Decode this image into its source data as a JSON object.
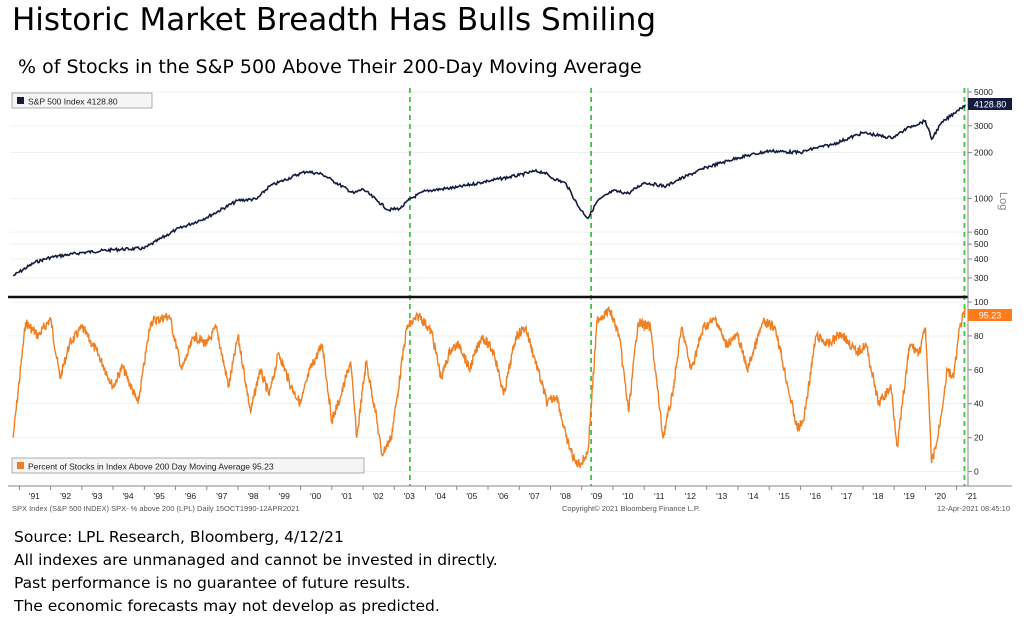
{
  "title": "Historic Market Breadth Has Bulls Smiling",
  "subtitle": "% of Stocks in the S&P 500 Above Their 200-Day Moving Average",
  "footnotes": [
    "Source: LPL Research, Bloomberg, 4/12/21",
    "All indexes are unmanaged and cannot be invested in directly.",
    "Past performance is no guarantee of future results.",
    "The economic forecasts may not develop as predicted."
  ],
  "chart_data": [
    {
      "type": "line",
      "legend": "S&P 500 Index 4128.80",
      "last_value_label": "4128.80",
      "scale": "log",
      "ylim": [
        250,
        5000
      ],
      "y_ticks": [
        300,
        400,
        500,
        600,
        1000,
        2000,
        3000,
        5000
      ],
      "y_axis_note": "Log",
      "x_years": [
        1990.8,
        1991.5,
        1992.0,
        1993.0,
        1994.0,
        1995.0,
        1996.0,
        1997.0,
        1998.0,
        1998.6,
        1999.0,
        2000.0,
        2000.2,
        2000.7,
        2001.0,
        2001.7,
        2002.0,
        2002.5,
        2002.8,
        2003.2,
        2003.5,
        2004.0,
        2005.0,
        2006.0,
        2007.0,
        2007.5,
        2007.8,
        2008.0,
        2008.5,
        2008.9,
        2009.2,
        2009.5,
        2010.0,
        2010.5,
        2011.0,
        2011.7,
        2012.0,
        2013.0,
        2014.0,
        2015.0,
        2016.0,
        2016.5,
        2017.0,
        2018.0,
        2018.9,
        2019.0,
        2019.5,
        2020.0,
        2020.2,
        2020.5,
        2021.0,
        2021.28
      ],
      "values": [
        310,
        380,
        410,
        440,
        460,
        470,
        620,
        750,
        970,
        990,
        1200,
        1460,
        1500,
        1440,
        1320,
        1080,
        1150,
        950,
        840,
        860,
        990,
        1120,
        1180,
        1300,
        1420,
        1510,
        1480,
        1380,
        1250,
        880,
        740,
        960,
        1120,
        1080,
        1270,
        1200,
        1300,
        1600,
        1850,
        2050,
        2000,
        2150,
        2250,
        2700,
        2500,
        2550,
        2950,
        3230,
        2450,
        3100,
        3750,
        4128.8
      ]
    },
    {
      "type": "line",
      "legend": "Percent of Stocks in Index Above 200 Day Moving Average 95.23",
      "last_value_label": "95.23",
      "ylim": [
        -5,
        100
      ],
      "y_ticks": [
        0,
        20,
        40,
        60,
        80,
        100
      ],
      "x_years": [
        1990.8,
        1991.2,
        1991.6,
        1992.0,
        1992.3,
        1992.6,
        1993.0,
        1993.5,
        1994.0,
        1994.3,
        1994.8,
        1995.2,
        1995.8,
        1996.2,
        1996.6,
        1997.0,
        1997.3,
        1997.7,
        1998.0,
        1998.4,
        1998.7,
        1999.0,
        1999.3,
        1999.7,
        2000.0,
        2000.3,
        2000.7,
        2001.0,
        2001.3,
        2001.6,
        2001.8,
        2002.1,
        2002.4,
        2002.6,
        2002.9,
        2003.1,
        2003.4,
        2003.8,
        2004.2,
        2004.5,
        2004.8,
        2005.1,
        2005.4,
        2005.8,
        2006.2,
        2006.5,
        2006.9,
        2007.2,
        2007.6,
        2007.9,
        2008.2,
        2008.5,
        2008.8,
        2009.0,
        2009.2,
        2009.5,
        2009.9,
        2010.2,
        2010.5,
        2010.8,
        2011.2,
        2011.6,
        2011.9,
        2012.2,
        2012.5,
        2012.9,
        2013.3,
        2013.6,
        2014.0,
        2014.3,
        2014.8,
        2015.2,
        2015.6,
        2015.9,
        2016.1,
        2016.5,
        2016.9,
        2017.3,
        2017.8,
        2018.1,
        2018.5,
        2018.9,
        2019.1,
        2019.5,
        2019.8,
        2020.0,
        2020.2,
        2020.4,
        2020.7,
        2020.9,
        2021.1,
        2021.28
      ],
      "values": [
        20,
        88,
        80,
        90,
        55,
        75,
        85,
        70,
        50,
        62,
        40,
        88,
        92,
        60,
        80,
        75,
        85,
        50,
        80,
        35,
        60,
        45,
        70,
        50,
        40,
        60,
        75,
        30,
        45,
        65,
        20,
        65,
        35,
        10,
        20,
        45,
        85,
        92,
        82,
        55,
        72,
        75,
        60,
        80,
        70,
        45,
        80,
        85,
        60,
        40,
        45,
        20,
        5,
        5,
        12,
        90,
        95,
        80,
        35,
        88,
        85,
        20,
        45,
        85,
        60,
        85,
        90,
        75,
        80,
        60,
        88,
        85,
        50,
        25,
        30,
        80,
        75,
        82,
        70,
        75,
        40,
        50,
        15,
        75,
        70,
        85,
        5,
        20,
        60,
        55,
        85,
        95.23
      ]
    }
  ],
  "x_tick_labels": [
    "'91",
    "'92",
    "'93",
    "'94",
    "'95",
    "'96",
    "'97",
    "'98",
    "'99",
    "'00",
    "'01",
    "'02",
    "'03",
    "'04",
    "'05",
    "'06",
    "'07",
    "'08",
    "'09",
    "'10",
    "'11",
    "'12",
    "'13",
    "'14",
    "'15",
    "'16",
    "'17",
    "'18",
    "'19",
    "'20",
    "'21"
  ],
  "x_tick_years": [
    1991,
    1992,
    1993,
    1994,
    1995,
    1996,
    1997,
    1998,
    1999,
    2000,
    2001,
    2002,
    2003,
    2004,
    2005,
    2006,
    2007,
    2008,
    2009,
    2010,
    2011,
    2012,
    2013,
    2014,
    2015,
    2016,
    2017,
    2018,
    2019,
    2020,
    2021
  ],
  "x_range": [
    1990.7,
    2021.3
  ],
  "highlight_years": [
    2003.5,
    2009.3,
    2021.25
  ],
  "bloomberg_footer": {
    "left": "SPX Index (S&P 500 INDEX) SPX- % above 200 (LPL) Daily 15OCT1990-12APR2021",
    "center": "Copyright© 2021 Bloomberg Finance L.P.",
    "right": "12-Apr-2021 08:45:10"
  },
  "colors": {
    "spx_line": "#141b3c",
    "breadth_line": "#f07f22",
    "highlight_dash": "#3fc43f",
    "label_box": "#ff7a1a",
    "legend_bg": "#f5f5f5"
  }
}
